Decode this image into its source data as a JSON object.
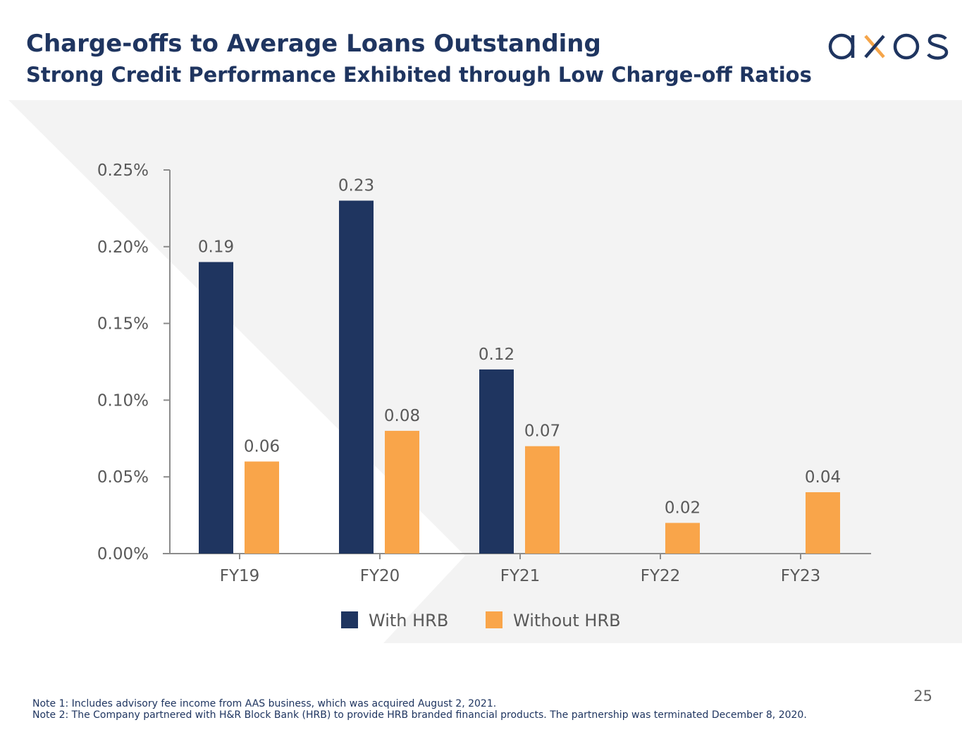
{
  "header": {
    "title": "Charge-offs to Average Loans Outstanding",
    "subtitle": "Strong Credit Performance Exhibited through Low Charge-off Ratios"
  },
  "logo": {
    "text": "axos",
    "primary_color": "#1f3560",
    "accent_color": "#f5a54a"
  },
  "colors": {
    "with_hrb": "#1f3560",
    "without_hrb": "#f9a54a",
    "axis": "#8c8c8c",
    "label": "#595959",
    "panel": "#f3f3f3"
  },
  "chart_data": {
    "type": "bar",
    "title": "",
    "xlabel": "",
    "ylabel": "",
    "ylim": [
      0,
      0.25
    ],
    "y_ticks": [
      0,
      0.05,
      0.1,
      0.15,
      0.2,
      0.25
    ],
    "y_tick_labels": [
      "0.00%",
      "0.05%",
      "0.10%",
      "0.15%",
      "0.20%",
      "0.25%"
    ],
    "categories": [
      "FY19",
      "FY20",
      "FY21",
      "FY22",
      "FY23"
    ],
    "series": [
      {
        "name": "With HRB",
        "values": [
          0.19,
          0.23,
          0.12,
          null,
          null
        ],
        "labels": [
          "0.19",
          "0.23",
          "0.12",
          null,
          null
        ]
      },
      {
        "name": "Without HRB",
        "values": [
          0.06,
          0.08,
          0.07,
          0.02,
          0.04
        ],
        "labels": [
          "0.06",
          "0.08",
          "0.07",
          "0.02",
          "0.04"
        ]
      }
    ],
    "legend_position": "bottom-center"
  },
  "footer": {
    "page_number": "25",
    "note1": "Note 1: Includes advisory fee income from AAS business, which was acquired August 2, 2021.",
    "note2": "Note 2: The Company partnered with H&R Block Bank (HRB) to provide HRB branded financial products. The partnership was terminated December 8, 2020."
  }
}
